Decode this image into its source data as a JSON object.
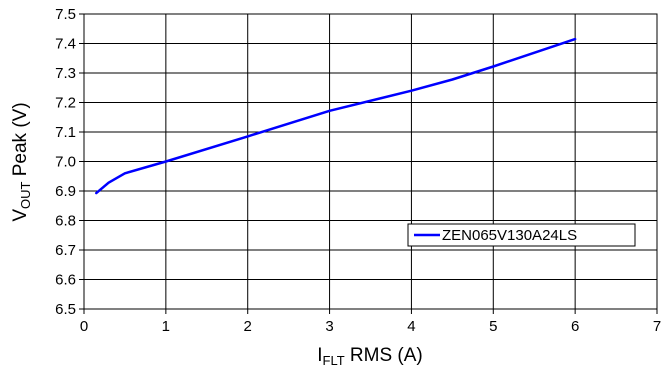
{
  "chart_data": {
    "type": "line",
    "title": "",
    "xlabel": {
      "main": "I",
      "sub": "FLT",
      "rest": " RMS (A)"
    },
    "ylabel": {
      "main": "V",
      "sub": "OUT",
      "rest": " Peak (V)"
    },
    "xlim": [
      0,
      7
    ],
    "ylim": [
      6.5,
      7.5
    ],
    "xticks": [
      "0",
      "1",
      "2",
      "3",
      "4",
      "5",
      "6",
      "7"
    ],
    "yticks": [
      "6.5",
      "6.6",
      "6.7",
      "6.8",
      "6.9",
      "7.0",
      "7.1",
      "7.2",
      "7.3",
      "7.4",
      "7.5"
    ],
    "grid": true,
    "legend_position": "lower-right",
    "colors": {
      "series": "#0000ff",
      "grid": "#000000",
      "background": "#ffffff"
    },
    "series": [
      {
        "name": "ZEN065V130A24LS",
        "x": [
          0.15,
          0.3,
          0.5,
          1.0,
          2.0,
          3.0,
          4.0,
          4.5,
          5.0,
          6.0
        ],
        "y": [
          6.893,
          6.928,
          6.96,
          7.0,
          7.085,
          7.172,
          7.24,
          7.278,
          7.322,
          7.415
        ]
      }
    ]
  }
}
